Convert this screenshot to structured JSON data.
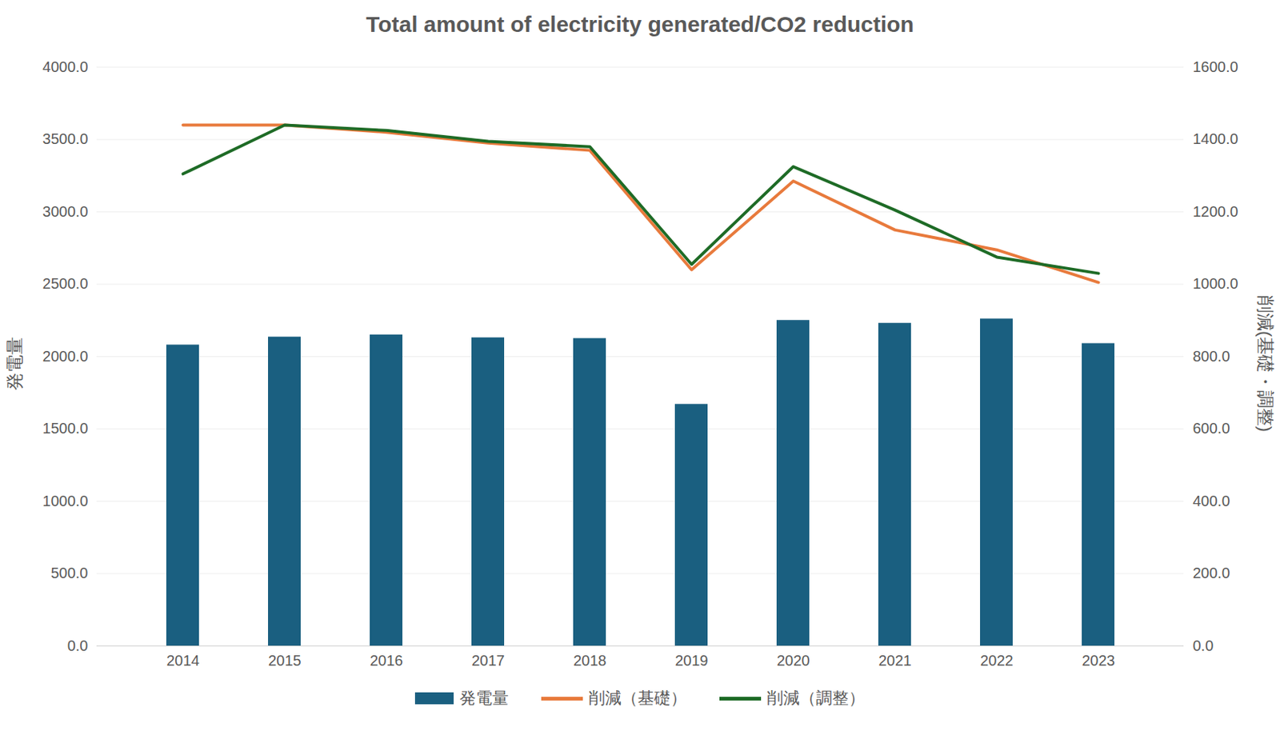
{
  "chart_data": {
    "type": "bar",
    "title": "Total amount of electricity generated/CO2 reduction",
    "categories": [
      "2014",
      "2015",
      "2016",
      "2017",
      "2018",
      "2019",
      "2020",
      "2021",
      "2022",
      "2023"
    ],
    "series": [
      {
        "name": "発電量",
        "type": "bar",
        "color": "#1a5f80",
        "values": [
          2080,
          2135,
          2150,
          2130,
          2125,
          1670,
          2250,
          2230,
          2260,
          2090
        ]
      },
      {
        "name": "削減（基礎）",
        "type": "line",
        "axis": "y2",
        "color": "#e87a3c",
        "values": [
          1440,
          1440,
          1420,
          1390,
          1370,
          1040,
          1285,
          1150,
          1095,
          1005
        ]
      },
      {
        "name": "削減（調整）",
        "type": "line",
        "axis": "y2",
        "color": "#1e6b26",
        "values": [
          1305,
          1440,
          1425,
          1395,
          1380,
          1055,
          1325,
          1205,
          1075,
          1030
        ]
      }
    ],
    "y_label": "発電量",
    "y2_label": "削減(基礎・調整)",
    "ylim": [
      0,
      4000
    ],
    "yticks": [
      {
        "value": 0,
        "label": "0.0"
      },
      {
        "value": 500,
        "label": "500.0"
      },
      {
        "value": 1000,
        "label": "1000.0"
      },
      {
        "value": 1500,
        "label": "1500.0"
      },
      {
        "value": 2000,
        "label": "2000.0"
      },
      {
        "value": 2500,
        "label": "2500.0"
      },
      {
        "value": 3000,
        "label": "3000.0"
      },
      {
        "value": 3500,
        "label": "3500.0"
      },
      {
        "value": 4000,
        "label": "4000.0"
      }
    ],
    "y2lim": [
      0,
      1600
    ],
    "y2ticks": [
      {
        "value": 0,
        "label": "0.0"
      },
      {
        "value": 200,
        "label": "200.0"
      },
      {
        "value": 400,
        "label": "400.0"
      },
      {
        "value": 600,
        "label": "600.0"
      },
      {
        "value": 800,
        "label": "800.0"
      },
      {
        "value": 1000,
        "label": "1000.0"
      },
      {
        "value": 1200,
        "label": "1200.0"
      },
      {
        "value": 1400,
        "label": "1400.0"
      },
      {
        "value": 1600,
        "label": "1600.0"
      }
    ],
    "grid": true,
    "legend": "bottom"
  }
}
